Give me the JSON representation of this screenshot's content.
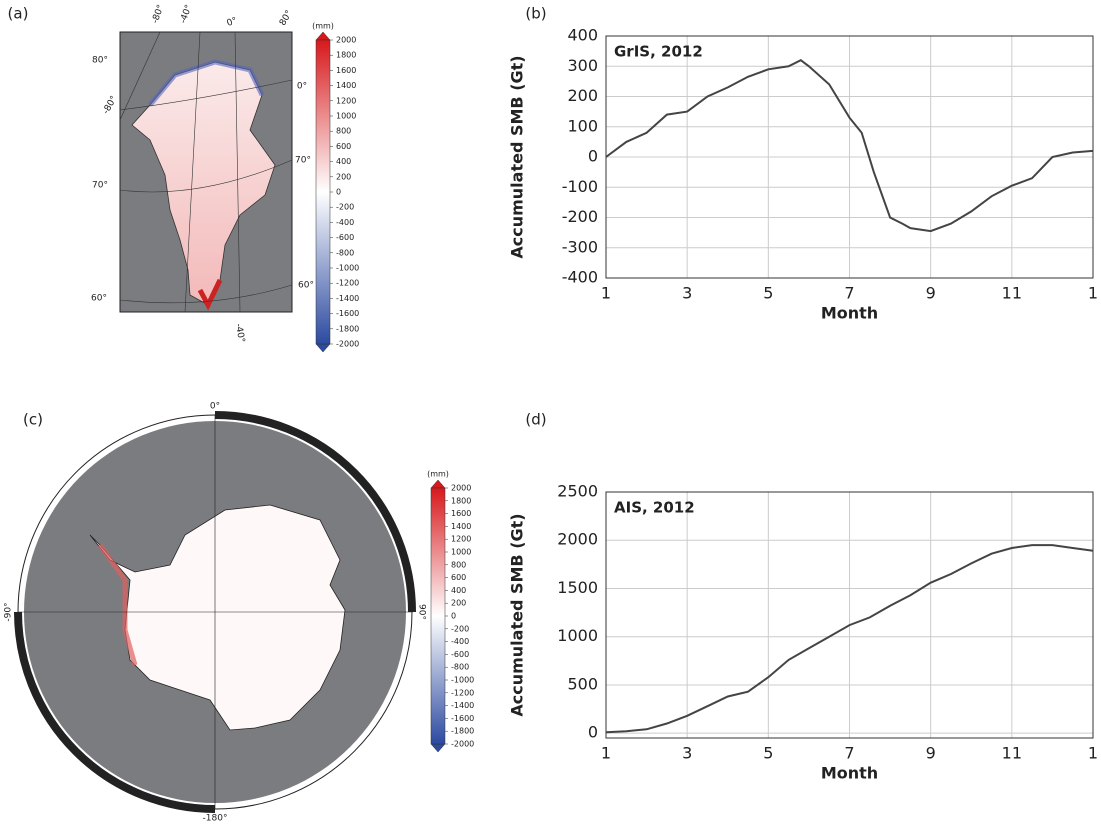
{
  "chart_data": [
    {
      "type": "map",
      "panel_label": "(a)",
      "colorbar_unit": "(mm)",
      "colorbar_ticks": [
        2000,
        1800,
        1600,
        1400,
        1200,
        1000,
        800,
        600,
        400,
        200,
        0,
        -200,
        -400,
        -600,
        -800,
        -1000,
        -1200,
        -1400,
        -1600,
        -1800,
        -2000
      ],
      "map_labels": [
        "-80°",
        "-40°",
        "0°",
        "80°",
        "80°",
        "-80°",
        "0°",
        "70°",
        "70°",
        "60°",
        "60°",
        "-40°"
      ]
    },
    {
      "type": "line",
      "panel_label": "(b)",
      "annotation": "GrIS, 2012",
      "color": "#444444",
      "xlabel": "Month",
      "ylabel": "Accumulated SMB (Gt)",
      "x": [
        1,
        1.5,
        2,
        2.5,
        3,
        3.5,
        4,
        4.5,
        5,
        5.5,
        5.8,
        6,
        6.5,
        7,
        7.3,
        7.6,
        8,
        8.3,
        8.5,
        9,
        9.5,
        10,
        10.5,
        11,
        11.5,
        12,
        12.5,
        13
      ],
      "values": [
        0,
        50,
        80,
        140,
        150,
        200,
        230,
        265,
        290,
        300,
        320,
        300,
        240,
        130,
        80,
        -50,
        -200,
        -220,
        -235,
        -245,
        -220,
        -180,
        -130,
        -95,
        -70,
        0,
        15,
        20
      ],
      "xlim": [
        1,
        13
      ],
      "xticks": [
        1,
        3,
        5,
        7,
        9,
        11,
        {
          "value": 13,
          "label": "1"
        }
      ],
      "ylim": [
        -400,
        400
      ],
      "yticks": [
        -400,
        -300,
        -200,
        -100,
        0,
        100,
        200,
        300,
        400
      ],
      "grid": true
    },
    {
      "type": "map",
      "panel_label": "(c)",
      "colorbar_unit": "(mm)",
      "colorbar_ticks": [
        2000,
        1800,
        1600,
        1400,
        1200,
        1000,
        800,
        600,
        400,
        200,
        0,
        -200,
        -400,
        -600,
        -800,
        -1000,
        -1200,
        -1400,
        -1600,
        -1800,
        -2000
      ],
      "map_labels": [
        "0°",
        "90°",
        "-180°",
        "-90°"
      ]
    },
    {
      "type": "line",
      "panel_label": "(d)",
      "annotation": "AIS, 2012",
      "color": "#444444",
      "xlabel": "Month",
      "ylabel": "Accumulated SMB (Gt)",
      "x": [
        1,
        1.5,
        2,
        2.5,
        3,
        3.5,
        4,
        4.5,
        5,
        5.5,
        6,
        6.5,
        7,
        7.5,
        8,
        8.5,
        9,
        9.5,
        10,
        10.5,
        11,
        11.5,
        12,
        12.5,
        13
      ],
      "values": [
        10,
        20,
        40,
        100,
        180,
        280,
        380,
        430,
        580,
        760,
        880,
        1000,
        1120,
        1200,
        1320,
        1430,
        1560,
        1650,
        1760,
        1860,
        1920,
        1950,
        1950,
        1920,
        1890
      ],
      "xlim": [
        1,
        13
      ],
      "xticks": [
        1,
        3,
        5,
        7,
        9,
        11,
        {
          "value": 13,
          "label": "1"
        }
      ],
      "ylim": [
        -50,
        2500
      ],
      "yticks": [
        0,
        500,
        1000,
        1500,
        2000,
        2500
      ],
      "grid": true
    }
  ]
}
